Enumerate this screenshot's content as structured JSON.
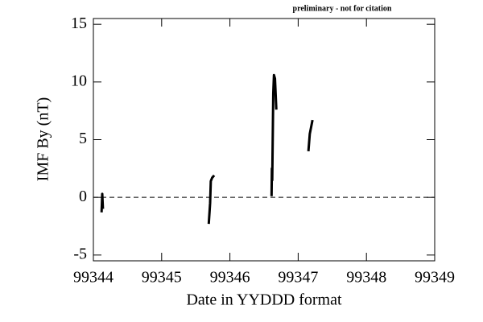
{
  "chart_data": {
    "type": "line",
    "annotation": "preliminary - not for citation",
    "x_label": "Date in YYDDD format",
    "y_label": "IMF By (nT)",
    "x": [
      99344.12,
      99344.13,
      99344.14,
      99345.0,
      99345.69,
      99345.71,
      99345.72,
      99345.74,
      99345.77,
      99346.2,
      99346.61,
      99346.615,
      99346.62,
      99346.635,
      99346.645,
      99346.66,
      99346.68,
      99347.0,
      99347.15,
      99347.17,
      99347.21
    ],
    "series": [
      {
        "color": "#000000",
        "values": [
          -1.3,
          0.3,
          -1.0,
          null,
          -2.3,
          -0.5,
          1.4,
          1.7,
          1.9,
          null,
          0.1,
          2.5,
          1.5,
          9.0,
          10.6,
          10.3,
          7.6,
          null,
          4.0,
          5.5,
          6.7
        ]
      }
    ],
    "xlim": [
      99344,
      99349
    ],
    "xticks": [
      99344,
      99345,
      99346,
      99347,
      99348,
      99349
    ],
    "ylim": [
      -5.5,
      15.5
    ],
    "yticks": [
      -5,
      0,
      5,
      10,
      15
    ],
    "hline": 0
  }
}
